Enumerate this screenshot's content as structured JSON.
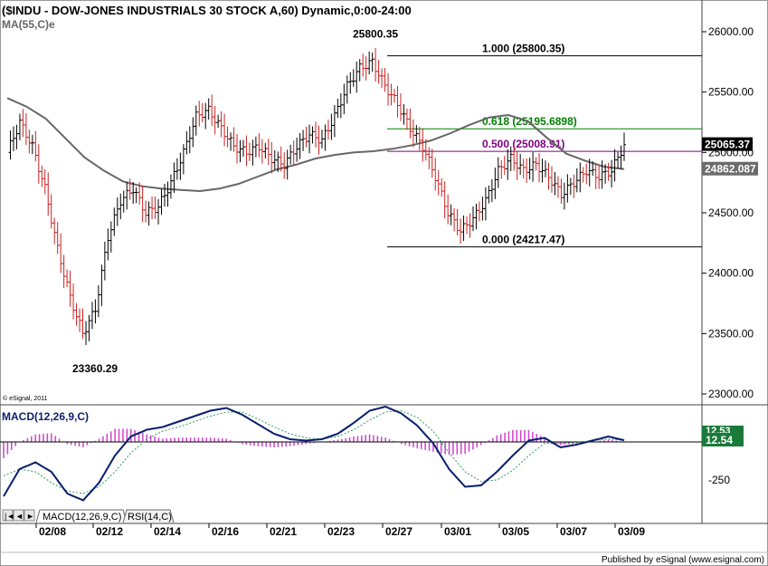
{
  "header": {
    "title": "($INDU - DOW-JONES INDUSTRIALS 30 STOCK A,60) Dynamic,0:00-24:00",
    "ma_label": "MA(55,C)e",
    "copyright": "© eSignal, 2011"
  },
  "footer": {
    "published_by": "Published by eSignal (www.esignal.com)"
  },
  "colors": {
    "up_bar": "#000000",
    "down_bar": "#cc2222",
    "ma_line": "#666666",
    "fib_black": "#000000",
    "fib_green": "#008000",
    "fib_purple": "#800080",
    "macd_line": "#0a1f6e",
    "signal_line": "#2e9e5a",
    "histogram": "#cc44cc",
    "price_badge": "#000000",
    "ma_badge": "#6b6b6b",
    "macd_badge": "#1a7a3a"
  },
  "chart_data": {
    "type": "line",
    "price_panel": {
      "series": "OHLC hourly bars",
      "yaxis_ticks": [
        "26000.00",
        "25500.00",
        "25000.00",
        "24500.00",
        "24000.00",
        "23500.00",
        "23000.00"
      ],
      "ylim": [
        22950,
        26250
      ],
      "x_ticks": [
        "02/08",
        "02/12",
        "02/14",
        "02/16",
        "02/21",
        "02/23",
        "02/27",
        "03/01",
        "03/05",
        "03/07",
        "03/09"
      ],
      "closes": [
        25000,
        25250,
        25050,
        24700,
        24200,
        23800,
        23500,
        23700,
        24300,
        24600,
        24700,
        24500,
        24550,
        24750,
        25000,
        25300,
        25350,
        25200,
        25050,
        25000,
        25050,
        24950,
        24900,
        25050,
        25150,
        25100,
        25300,
        25550,
        25700,
        25750,
        25550,
        25400,
        25200,
        25050,
        24800,
        24500,
        24350,
        24450,
        24600,
        24850,
        24950,
        24850,
        24900,
        24800,
        24650,
        24750,
        24850,
        24800,
        24850,
        25065
      ],
      "ma55": [
        25450,
        25380,
        25280,
        25120,
        24960,
        24850,
        24760,
        24720,
        24700,
        24690,
        24680,
        24700,
        24740,
        24800,
        24860,
        24900,
        24950,
        24980,
        25000,
        25010,
        25030,
        25060,
        25100,
        25160,
        25230,
        25290,
        25310,
        25260,
        25120,
        24990,
        24930,
        24880,
        24862
      ],
      "annotations": [
        {
          "text": "25800.35",
          "value": 25800.35
        },
        {
          "text": "23360.29",
          "value": 23360.29
        }
      ],
      "fib_levels": [
        {
          "ratio": "1.000",
          "value": 25800.35,
          "label": "1.000 (25800.35)"
        },
        {
          "ratio": "0.618",
          "value": 25195.6898,
          "label": "0.618 (25195.6898)"
        },
        {
          "ratio": "0.500",
          "value": 25008.91,
          "label": "0.500 (25008.91)"
        },
        {
          "ratio": "0.000",
          "value": 24217.47,
          "label": "0.000 (24217.47)"
        }
      ],
      "last_price": "25065.37",
      "ma_value": "24862.087"
    },
    "macd_panel": {
      "label": "MACD(12,26,9,C)",
      "yaxis_ticks": [
        "-250"
      ],
      "badge_top": "12.53",
      "badge_value": "12.54",
      "macd": [
        -400,
        -200,
        -150,
        -220,
        -380,
        -430,
        -300,
        -100,
        40,
        90,
        110,
        150,
        190,
        230,
        250,
        200,
        130,
        60,
        20,
        10,
        20,
        60,
        140,
        230,
        260,
        210,
        120,
        -10,
        -200,
        -330,
        -320,
        -220,
        -100,
        10,
        30,
        -40,
        -20,
        10,
        40,
        12.54
      ],
      "signal": [
        -250,
        -200,
        -220,
        -300,
        -360,
        -380,
        -330,
        -220,
        -80,
        20,
        80,
        110,
        150,
        190,
        220,
        220,
        170,
        110,
        60,
        30,
        20,
        40,
        90,
        160,
        220,
        230,
        180,
        80,
        -80,
        -220,
        -290,
        -280,
        -210,
        -100,
        -10,
        -10,
        -5,
        10,
        20,
        12.53
      ]
    }
  },
  "tabs": [
    {
      "label": "MACD(12,26,9,C)",
      "active": true
    },
    {
      "label": "RSI(14,C)",
      "active": false
    }
  ]
}
